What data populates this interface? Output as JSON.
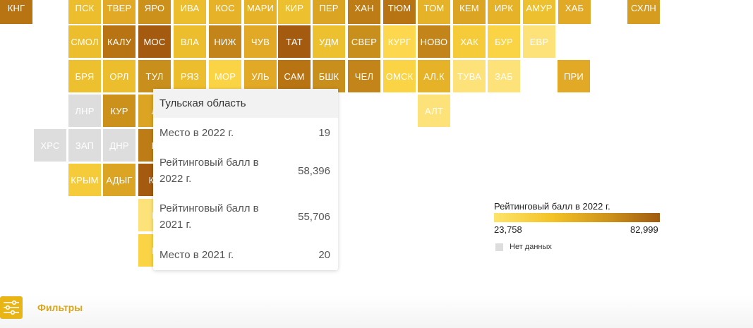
{
  "map": {
    "tiles": [
      {
        "label": "КНГ",
        "color": "#b87413"
      },
      {
        "label": "ПСК",
        "color": "#ecbd2c"
      },
      {
        "label": "ТВЕР",
        "color": "#e2a927"
      },
      {
        "label": "ЯРО",
        "color": "#cc911b"
      },
      {
        "label": "ИВА",
        "color": "#ecbd2c"
      },
      {
        "label": "КОС",
        "color": "#e5b228"
      },
      {
        "label": "МАРИ",
        "color": "#e5b228"
      },
      {
        "label": "КИР",
        "color": "#edc02f"
      },
      {
        "label": "ПЕР",
        "color": "#dca423"
      },
      {
        "label": "ХАН",
        "color": "#bd7c15"
      },
      {
        "label": "ТЮМ",
        "color": "#b87413"
      },
      {
        "label": "ТОМ",
        "color": "#e5b228"
      },
      {
        "label": "КЕМ",
        "color": "#dca423"
      },
      {
        "label": "ИРК",
        "color": "#e5b228"
      },
      {
        "label": "АМУР",
        "color": "#edc02f"
      },
      {
        "label": "ХАБ",
        "color": "#e2a927"
      },
      {
        "label": "СХЛН",
        "color": "#d59c1f"
      },
      {
        "label": "СМОЛ",
        "color": "#ecbd2c"
      },
      {
        "label": "КАЛУ",
        "color": "#b87413"
      },
      {
        "label": "МОС",
        "color": "#a45a0f"
      },
      {
        "label": "ВЛА",
        "color": "#ecbd2c"
      },
      {
        "label": "НИЖ",
        "color": "#c3841a"
      },
      {
        "label": "ЧУВ",
        "color": "#e2a927"
      },
      {
        "label": "ТАТ",
        "color": "#a45a0f"
      },
      {
        "label": "УДМ",
        "color": "#edc02f"
      },
      {
        "label": "СВЕР",
        "color": "#c98f1c"
      },
      {
        "label": "КУРГ",
        "color": "#fdd84f"
      },
      {
        "label": "НОВО",
        "color": "#c3841a"
      },
      {
        "label": "ХАК",
        "color": "#f6cb3a"
      },
      {
        "label": "БУР",
        "color": "#fad445"
      },
      {
        "label": "ЕВР",
        "color": "#fde27a"
      },
      {
        "label": "БРЯ",
        "color": "#edc02f"
      },
      {
        "label": "ОРЛ",
        "color": "#ecbd2c"
      },
      {
        "label": "ТУЛ",
        "color": "#c98f1c"
      },
      {
        "label": "РЯЗ",
        "color": "#ecbd2c"
      },
      {
        "label": "МОР",
        "color": "#fad445"
      },
      {
        "label": "УЛЬ",
        "color": "#e2a927"
      },
      {
        "label": "САМ",
        "color": "#b87413"
      },
      {
        "label": "БШК",
        "color": "#c98f1c"
      },
      {
        "label": "ЧЕЛ",
        "color": "#c3841a"
      },
      {
        "label": "ОМСК",
        "color": "#fad445"
      },
      {
        "label": "АЛ.К",
        "color": "#e5b228"
      },
      {
        "label": "ТУВА",
        "color": "#fde27a"
      },
      {
        "label": "ЗАБ",
        "color": "#fde27a"
      },
      {
        "label": "ПРИ",
        "color": "#e2a927"
      },
      {
        "label": "ЛНР",
        "color": "#dddddd"
      },
      {
        "label": "КУР",
        "color": "#cc911b"
      },
      {
        "label": "Л",
        "color": "#dca423"
      },
      {
        "label": "АЛТ",
        "color": "#fde27a"
      },
      {
        "label": "ХРС",
        "color": "#dddddd"
      },
      {
        "label": "ЗАП",
        "color": "#dddddd"
      },
      {
        "label": "ДНР",
        "color": "#dddddd"
      },
      {
        "label": "Б",
        "color": "#bd7c15"
      },
      {
        "label": "КРЫМ",
        "color": "#f6cb3a"
      },
      {
        "label": "АДЫГ",
        "color": "#dca423"
      },
      {
        "label": "КР",
        "color": "#a45a0f"
      },
      {
        "label": "К",
        "color": "#fde27a"
      },
      {
        "label": "К",
        "color": "#fad445"
      }
    ]
  },
  "tooltip": {
    "title": "Тульская область",
    "rows": [
      {
        "label": "Место в 2022 г.",
        "value": "19"
      },
      {
        "label": "Рейтинговый балл в 2022 г.",
        "value": "58,396"
      },
      {
        "label": "Рейтинговый балл в 2021 г.",
        "value": "55,706"
      },
      {
        "label": "Место в 2021 г.",
        "value": "20"
      }
    ]
  },
  "legend": {
    "title": "Рейтинговый балл в 2022 г.",
    "min": "23,758",
    "max": "82,999",
    "no_data": "Нет данных",
    "no_data_color": "#dddddd"
  },
  "filters": {
    "label": "Фильтры",
    "icon": "sliders-icon",
    "accent": "#e9b514"
  }
}
